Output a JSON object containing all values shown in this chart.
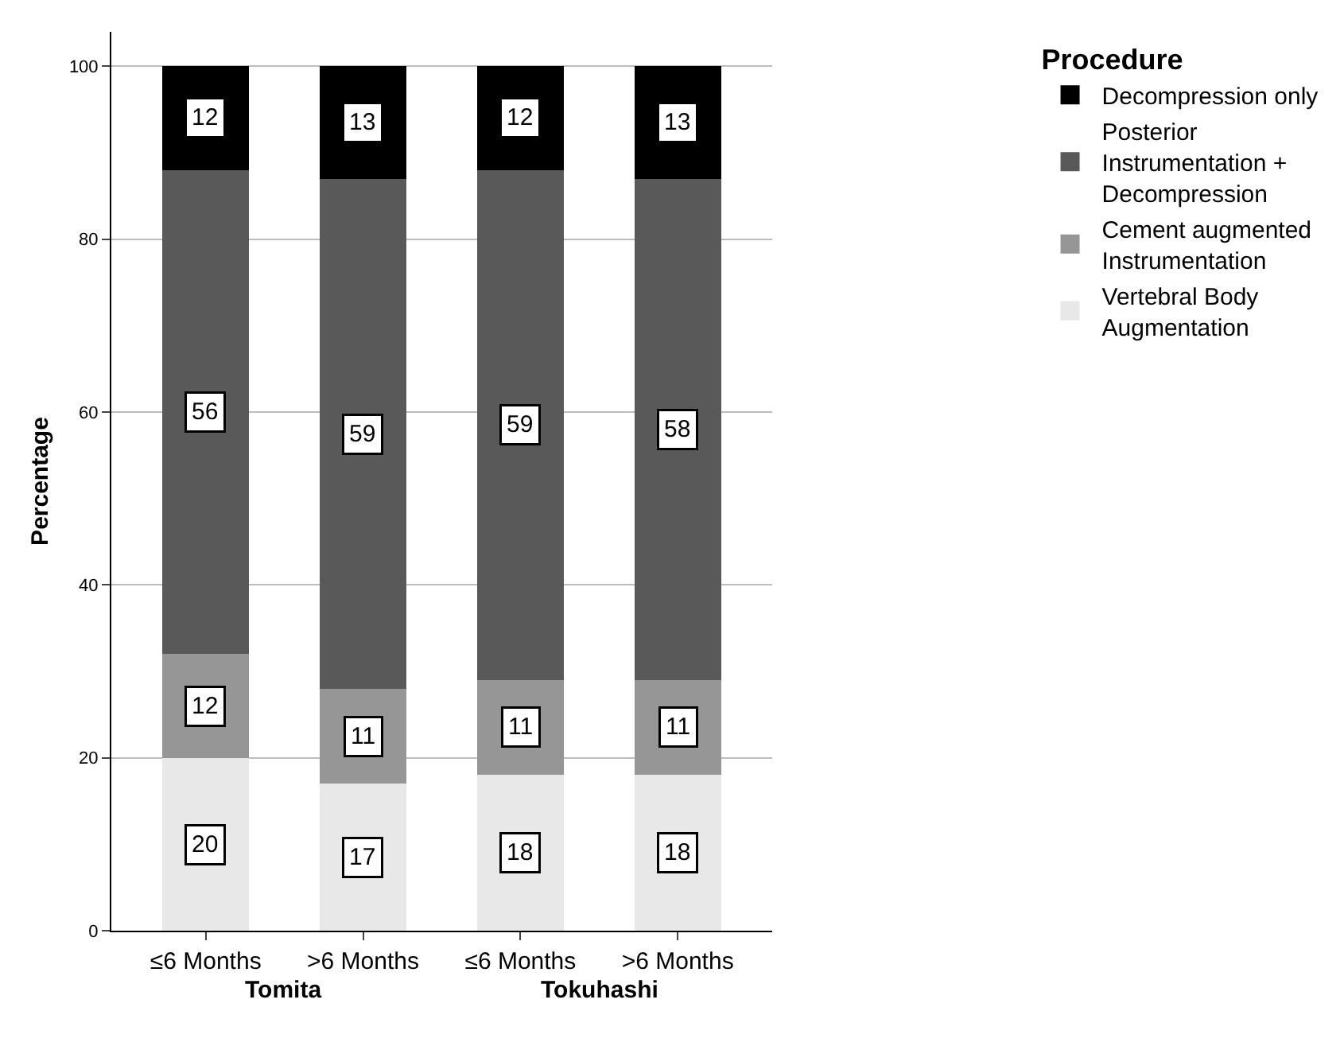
{
  "chart_data": {
    "type": "bar",
    "stacked": true,
    "categories": [
      "≤6 Months",
      ">6 Months",
      "≤6 Months",
      ">6 Months"
    ],
    "series": [
      {
        "name": "Vertebral Body Augmentation",
        "color": "#e8e8e8",
        "values": [
          20,
          17,
          18,
          18
        ]
      },
      {
        "name": "Cement augmented Instrumentation",
        "color": "#969696",
        "values": [
          12,
          11,
          11,
          11
        ]
      },
      {
        "name": "Posterior Instrumentation + Decompression",
        "color": "#595959",
        "values": [
          56,
          59,
          59,
          58
        ]
      },
      {
        "name": "Decompression only",
        "color": "#000000",
        "values": [
          12,
          13,
          12,
          13
        ]
      }
    ],
    "annotations": [
      "Tomita",
      "Tokuhashi"
    ],
    "ylabel": "Percentage",
    "legend_title": "Procedure",
    "legend": "right",
    "ylim": [
      0,
      104
    ],
    "yticks": [
      0,
      20,
      40,
      60,
      80,
      100
    ],
    "grid": "y",
    "data_labels": true
  }
}
